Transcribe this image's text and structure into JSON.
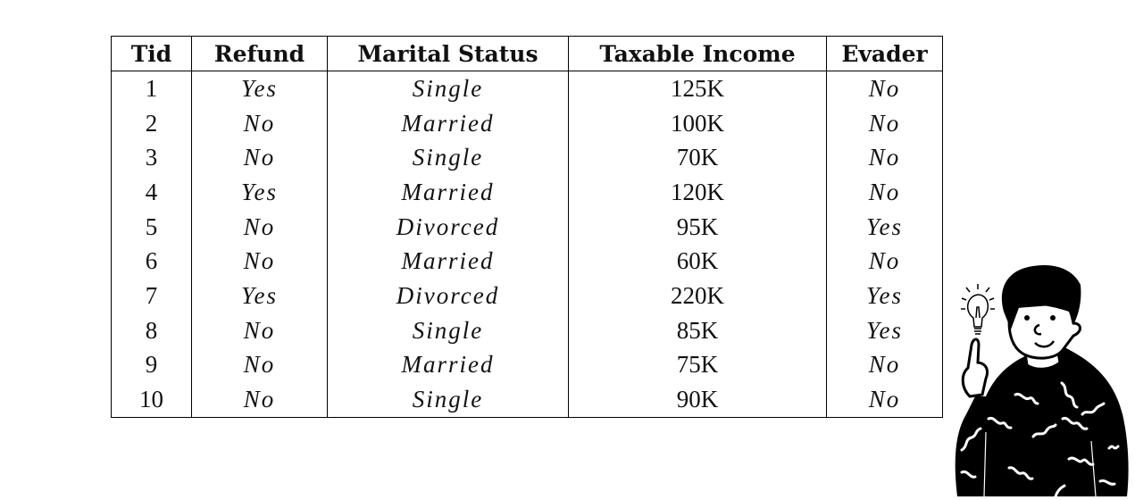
{
  "table": {
    "headers": [
      "Tid",
      "Refund",
      "Marital Status",
      "Taxable Income",
      "Evader"
    ],
    "rows": [
      [
        "1",
        "Yes",
        "Single",
        "125K",
        "No"
      ],
      [
        "2",
        "No",
        "Married",
        "100K",
        "No"
      ],
      [
        "3",
        "No",
        "Single",
        "70K",
        "No"
      ],
      [
        "4",
        "Yes",
        "Married",
        "120K",
        "No"
      ],
      [
        "5",
        "No",
        "Divorced",
        "95K",
        "Yes"
      ],
      [
        "6",
        "No",
        "Married",
        "60K",
        "No"
      ],
      [
        "7",
        "Yes",
        "Divorced",
        "220K",
        "Yes"
      ],
      [
        "8",
        "No",
        "Single",
        "85K",
        "Yes"
      ],
      [
        "9",
        "No",
        "Married",
        "75K",
        "No"
      ],
      [
        "10",
        "No",
        "Single",
        "90K",
        "No"
      ]
    ]
  },
  "illustration": {
    "icon": "person-with-lightbulb-icon"
  }
}
